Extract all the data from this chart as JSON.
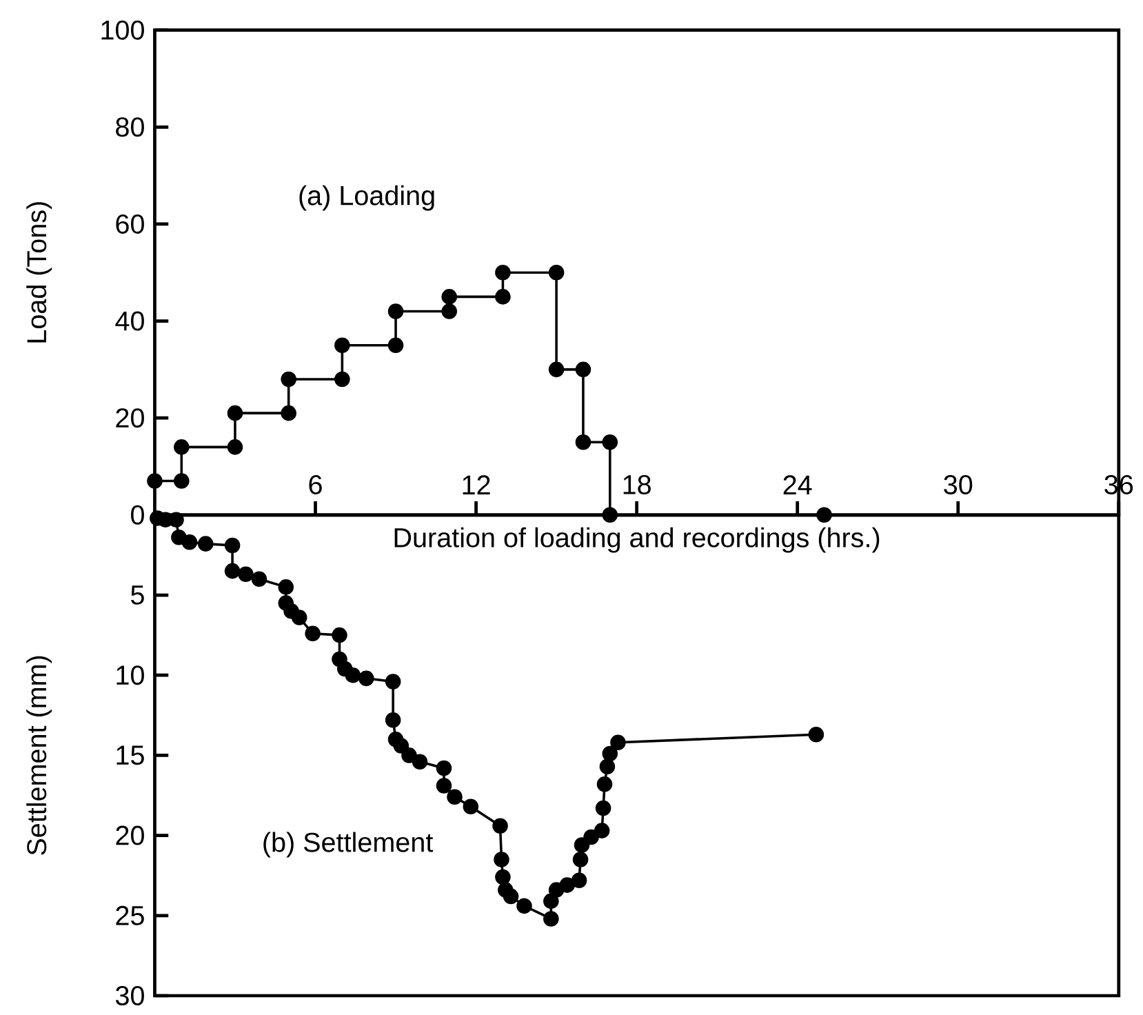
{
  "chart_data": [
    {
      "type": "line",
      "title": "(a) Loading",
      "xlabel": "Duration of loading and recordings (hrs.)",
      "ylabel": "Load (Tons)",
      "series": [
        {
          "color": "#000000",
          "x": [
            0,
            1,
            1,
            3,
            3,
            5,
            5,
            7,
            7,
            9,
            9,
            11,
            11,
            13,
            13,
            15,
            15,
            16,
            16,
            17,
            17,
            25
          ],
          "values": [
            7,
            7,
            14,
            14,
            21,
            21,
            28,
            28,
            35,
            35,
            42,
            42,
            45,
            45,
            50,
            50,
            30,
            30,
            15,
            15,
            0,
            0
          ]
        }
      ],
      "xlim": [
        0,
        36
      ],
      "xticks": [
        6,
        12,
        18,
        24,
        30,
        36
      ],
      "ylim": [
        0,
        100
      ],
      "yticks": [
        0,
        20,
        40,
        60,
        80,
        100
      ],
      "marker": "circle",
      "line_style": "solid",
      "grid": false
    },
    {
      "type": "line",
      "title": "(b) Settlement",
      "ylabel": "Settlement (mm)",
      "series": [
        {
          "color": "#000000",
          "x": [
            0.1,
            0.4,
            0.8,
            0.9,
            1.3,
            1.9,
            2.9,
            2.9,
            3.4,
            3.9,
            4.9,
            4.9,
            5.1,
            5.4,
            5.9,
            6.9,
            6.9,
            7.1,
            7.4,
            7.9,
            8.9,
            8.9,
            9.0,
            9.2,
            9.5,
            9.9,
            10.8,
            10.8,
            11.2,
            11.8,
            12.9,
            12.95,
            13.0,
            13.1,
            13.3,
            13.8,
            14.8,
            14.8,
            15.0,
            15.4,
            15.85,
            15.9,
            15.95,
            16.3,
            16.7,
            16.75,
            16.8,
            16.9,
            17.0,
            17.3,
            24.7
          ],
          "values": [
            0.2,
            0.3,
            0.3,
            1.4,
            1.7,
            1.8,
            1.9,
            3.5,
            3.7,
            4.0,
            4.5,
            5.5,
            6.0,
            6.4,
            7.4,
            7.5,
            9.0,
            9.6,
            10.0,
            10.2,
            10.4,
            12.8,
            14.0,
            14.4,
            15.0,
            15.4,
            15.8,
            16.9,
            17.6,
            18.2,
            19.4,
            21.5,
            22.6,
            23.4,
            23.8,
            24.4,
            25.2,
            24.1,
            23.4,
            23.1,
            22.8,
            21.5,
            20.6,
            20.1,
            19.7,
            18.3,
            16.8,
            15.7,
            14.9,
            14.2,
            13.7
          ]
        }
      ],
      "xlim": [
        0,
        36
      ],
      "ylim": [
        30,
        0
      ],
      "yticks": [
        5,
        10,
        15,
        20,
        25,
        30
      ],
      "tick_labels": "y",
      "marker": "circle",
      "line_style": "solid",
      "grid": false
    }
  ]
}
